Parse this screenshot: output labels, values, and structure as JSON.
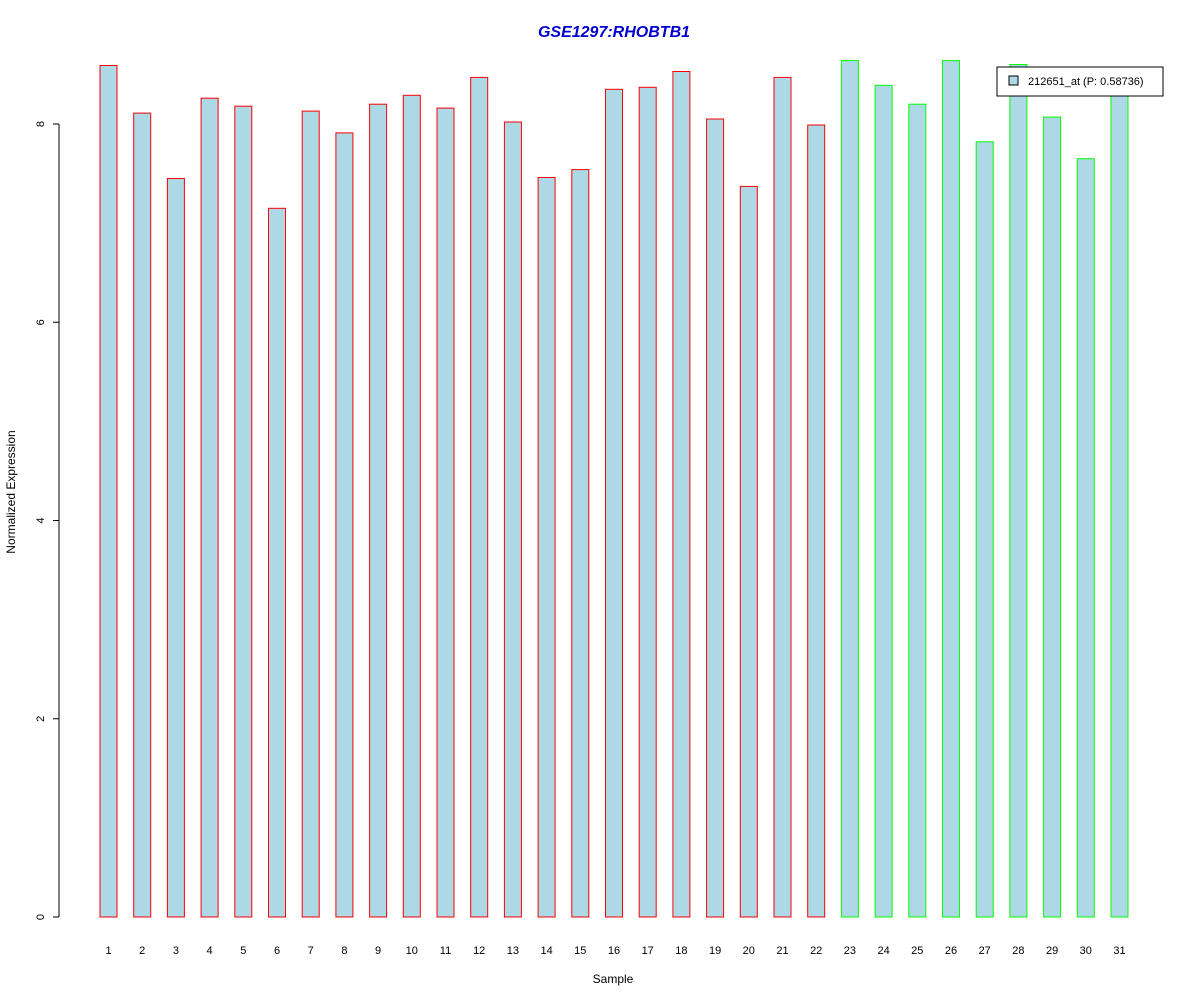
{
  "chart_data": {
    "type": "bar",
    "title": "GSE1297:RHOBTB1",
    "title_color": "#0000CC",
    "xlabel": "Sample",
    "ylabel": "Normalized Expression",
    "ylim": [
      0,
      8.7
    ],
    "yticks": [
      0,
      2,
      4,
      6,
      8
    ],
    "grid": false,
    "legend_position": "top-right",
    "categories": [
      "1",
      "2",
      "3",
      "4",
      "5",
      "6",
      "7",
      "8",
      "9",
      "10",
      "11",
      "12",
      "13",
      "14",
      "15",
      "16",
      "17",
      "18",
      "19",
      "20",
      "21",
      "22",
      "23",
      "24",
      "25",
      "26",
      "27",
      "28",
      "29",
      "30",
      "31"
    ],
    "series": [
      {
        "name": "212651_at (P: 0.58736)",
        "fill_color": "#ADD8E6",
        "values": [
          8.59,
          8.11,
          7.45,
          8.26,
          8.18,
          7.15,
          8.13,
          7.91,
          8.2,
          8.29,
          8.16,
          8.47,
          8.02,
          7.46,
          7.54,
          8.35,
          8.37,
          8.53,
          8.05,
          7.37,
          8.47,
          7.99,
          8.64,
          8.39,
          8.2,
          8.64,
          7.82,
          8.6,
          8.07,
          7.65,
          8.36
        ]
      }
    ],
    "groups": [
      {
        "samples": [
          1,
          22
        ],
        "border_color": "#FF0000"
      },
      {
        "samples": [
          23,
          31
        ],
        "border_color": "#00FF00"
      }
    ]
  }
}
